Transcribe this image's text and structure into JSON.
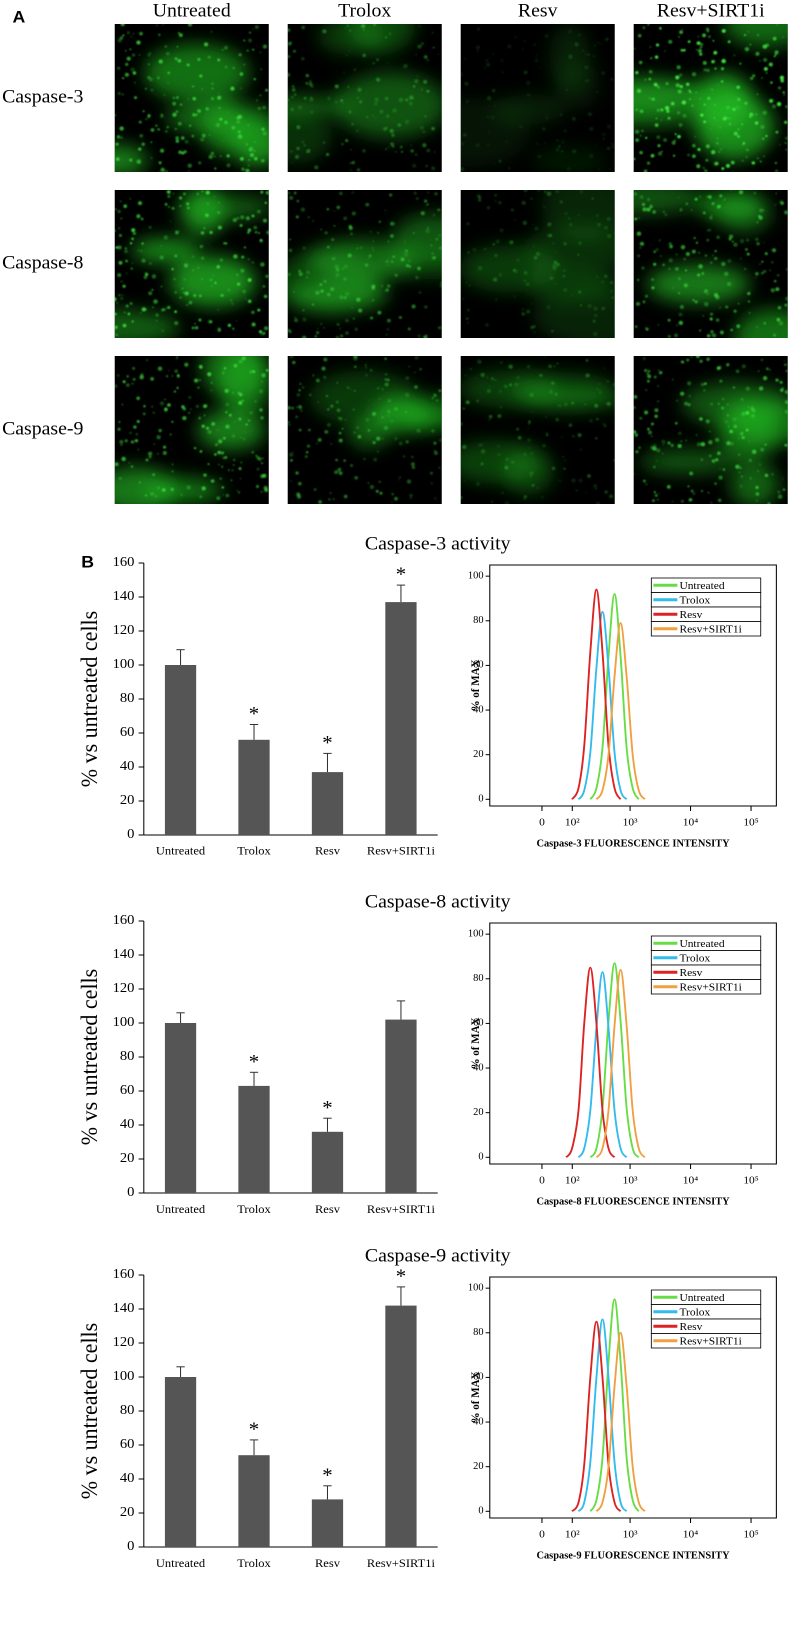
{
  "panel_a": {
    "label": "A",
    "columns": [
      "Untreated",
      "Trolox",
      "Resv",
      "Resv+SIRT1i"
    ],
    "rows": [
      "Caspase-3",
      "Caspase-8",
      "Caspase-9"
    ]
  },
  "panel_b": {
    "label": "B"
  },
  "chart_data": [
    {
      "type": "bar",
      "title": "Caspase-3 activity",
      "y_label": "% vs untreated cells",
      "categories": [
        "Untreated",
        "Trolox",
        "Resv",
        "Resv+SIRT1i"
      ],
      "values": [
        100,
        56,
        37,
        137
      ],
      "errors": [
        9,
        9,
        11,
        10
      ],
      "annotations": [
        {
          "index": 1,
          "text": "*"
        },
        {
          "index": 2,
          "text": "*"
        },
        {
          "index": 3,
          "text": "*"
        }
      ],
      "color": "#555555",
      "ylim": [
        0,
        160
      ],
      "yticks": [
        0,
        20,
        40,
        60,
        80,
        100,
        120,
        140,
        160
      ]
    },
    {
      "type": "line",
      "x_label": "Caspase-3 FLUORESCENCE INTENSITY",
      "y_label": "% of MAX",
      "xscale": "biexponential",
      "xlim": [
        -250,
        262144
      ],
      "xticks": [
        0,
        {
          "value": 100,
          "label": "10²"
        },
        {
          "value": 1000,
          "label": "10³"
        },
        {
          "value": 10000,
          "label": "10⁴"
        },
        {
          "value": 100000,
          "label": "10⁵"
        }
      ],
      "ylim": [
        -3,
        105
      ],
      "yticks": [
        0,
        20,
        40,
        60,
        80,
        100
      ],
      "legend": "upper right",
      "series": [
        {
          "name": "Untreated",
          "color": "#66dd44",
          "x": [
            215,
            274,
            347,
            438,
            552,
            696,
            877,
            1105,
            1392
          ],
          "values": [
            0,
            5,
            23,
            64,
            92,
            64,
            23,
            5,
            0
          ]
        },
        {
          "name": "Trolox",
          "color": "#33bbee",
          "x": [
            132,
            168,
            215,
            274,
            347,
            438,
            552,
            696,
            877
          ],
          "values": [
            0,
            4,
            21,
            59,
            84,
            59,
            21,
            4,
            0
          ]
        },
        {
          "name": "Resv",
          "color": "#dd2222",
          "x": [
            99,
            132,
            168,
            215,
            274,
            347,
            438,
            552,
            696
          ],
          "values": [
            0,
            5,
            24,
            66,
            94,
            66,
            24,
            5,
            0
          ]
        },
        {
          "name": "Resv+SIRT1i",
          "color": "#f0a040",
          "x": [
            274,
            347,
            438,
            552,
            696,
            877,
            1105,
            1392,
            1752
          ],
          "values": [
            0,
            4,
            20,
            55,
            79,
            55,
            20,
            4,
            0
          ]
        }
      ]
    },
    {
      "type": "bar",
      "title": "Caspase-8 activity",
      "y_label": "% vs untreated cells",
      "categories": [
        "Untreated",
        "Trolox",
        "Resv",
        "Resv+SIRT1i"
      ],
      "values": [
        100,
        63,
        36,
        102
      ],
      "errors": [
        6,
        8,
        8,
        11
      ],
      "annotations": [
        {
          "index": 1,
          "text": "*"
        },
        {
          "index": 2,
          "text": "*"
        }
      ],
      "color": "#555555",
      "ylim": [
        0,
        160
      ],
      "yticks": [
        0,
        20,
        40,
        60,
        80,
        100,
        120,
        140,
        160
      ]
    },
    {
      "type": "line",
      "x_label": "Caspase-8 FLUORESCENCE INTENSITY",
      "y_label": "% of MAX",
      "xscale": "biexponential",
      "xlim": [
        -250,
        262144
      ],
      "xticks": [
        0,
        {
          "value": 100,
          "label": "10²"
        },
        {
          "value": 1000,
          "label": "10³"
        },
        {
          "value": 10000,
          "label": "10⁴"
        },
        {
          "value": 100000,
          "label": "10⁵"
        }
      ],
      "ylim": [
        -3,
        105
      ],
      "yticks": [
        0,
        20,
        40,
        60,
        80,
        100
      ],
      "legend": "upper right",
      "series": [
        {
          "name": "Untreated",
          "color": "#66dd44",
          "x": [
            215,
            274,
            347,
            438,
            552,
            696,
            877,
            1105,
            1392
          ],
          "values": [
            0,
            4,
            22,
            61,
            87,
            61,
            22,
            4,
            0
          ]
        },
        {
          "name": "Trolox",
          "color": "#33bbee",
          "x": [
            132,
            168,
            215,
            274,
            347,
            438,
            552,
            696,
            877
          ],
          "values": [
            0,
            4,
            21,
            58,
            83,
            58,
            21,
            4,
            0
          ]
        },
        {
          "name": "Resv",
          "color": "#dd2222",
          "x": [
            74,
            99,
            132,
            168,
            215,
            274,
            347,
            438,
            552
          ],
          "values": [
            0,
            4,
            21,
            60,
            85,
            60,
            21,
            4,
            0
          ]
        },
        {
          "name": "Resv+SIRT1i",
          "color": "#f0a040",
          "x": [
            274,
            347,
            438,
            552,
            696,
            877,
            1105,
            1392,
            1752
          ],
          "values": [
            0,
            4,
            21,
            59,
            84,
            59,
            21,
            4,
            0
          ]
        }
      ]
    },
    {
      "type": "bar",
      "title": "Caspase-9 activity",
      "y_label": "% vs untreated cells",
      "categories": [
        "Untreated",
        "Trolox",
        "Resv",
        "Resv+SIRT1i"
      ],
      "values": [
        100,
        54,
        28,
        142
      ],
      "errors": [
        6,
        9,
        8,
        11
      ],
      "annotations": [
        {
          "index": 1,
          "text": "*"
        },
        {
          "index": 2,
          "text": "*"
        },
        {
          "index": 3,
          "text": "*"
        }
      ],
      "color": "#555555",
      "ylim": [
        0,
        160
      ],
      "yticks": [
        0,
        20,
        40,
        60,
        80,
        100,
        120,
        140,
        160
      ]
    },
    {
      "type": "line",
      "x_label": "Caspase-9 FLUORESCENCE INTENSITY",
      "y_label": "% of MAX",
      "xscale": "biexponential",
      "xlim": [
        -250,
        262144
      ],
      "xticks": [
        0,
        {
          "value": 100,
          "label": "10²"
        },
        {
          "value": 1000,
          "label": "10³"
        },
        {
          "value": 10000,
          "label": "10⁴"
        },
        {
          "value": 100000,
          "label": "10⁵"
        }
      ],
      "ylim": [
        -3,
        105
      ],
      "yticks": [
        0,
        20,
        40,
        60,
        80,
        100
      ],
      "legend": "upper right",
      "series": [
        {
          "name": "Untreated",
          "color": "#66dd44",
          "x": [
            215,
            274,
            347,
            438,
            552,
            696,
            877,
            1105,
            1392
          ],
          "values": [
            0,
            5,
            24,
            67,
            95,
            67,
            24,
            5,
            0
          ]
        },
        {
          "name": "Trolox",
          "color": "#33bbee",
          "x": [
            132,
            168,
            215,
            274,
            347,
            438,
            552,
            696,
            877
          ],
          "values": [
            0,
            4,
            22,
            60,
            86,
            60,
            22,
            4,
            0
          ]
        },
        {
          "name": "Resv",
          "color": "#dd2222",
          "x": [
            99,
            132,
            168,
            215,
            274,
            347,
            438,
            552,
            696
          ],
          "values": [
            0,
            4,
            21,
            60,
            85,
            60,
            21,
            4,
            0
          ]
        },
        {
          "name": "Resv+SIRT1i",
          "color": "#f0a040",
          "x": [
            274,
            347,
            438,
            552,
            696,
            877,
            1105,
            1392,
            1752
          ],
          "values": [
            0,
            4,
            20,
            56,
            80,
            56,
            20,
            4,
            0
          ]
        }
      ]
    }
  ]
}
